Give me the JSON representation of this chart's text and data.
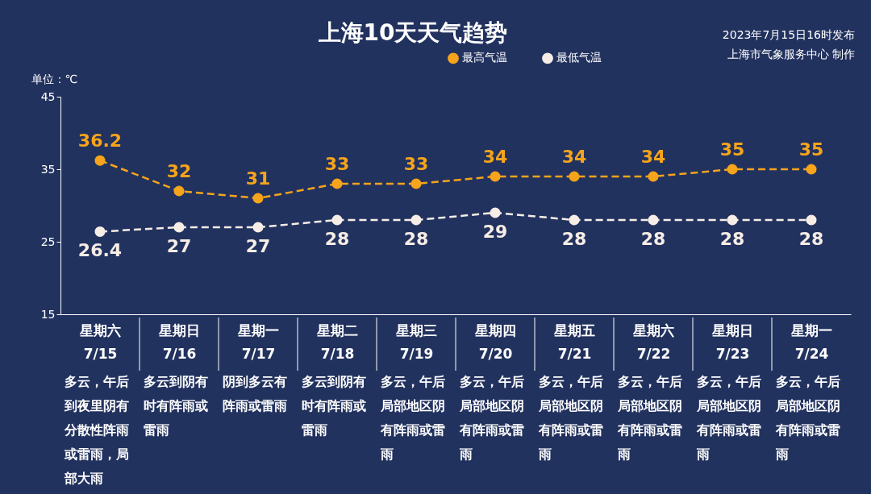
{
  "chart_data": {
    "type": "line",
    "title": "上海10天天气趋势",
    "ylabel": "单位：℃",
    "annotations": [
      "2023年7月15日16时发布",
      "上海市气象服务中心 制作",
      "多云，午后到夜里阴有分散性阵雨或雷雨，局部大雨",
      "多云到阴有时有阵雨或雷雨",
      "阴到多云有阵雨或雷雨",
      "多云到阴有时有阵雨或雷雨",
      "多云，午后局部地区阴有阵雨或雷雨",
      "多云，午后局部地区阴有阵雨或雷雨",
      "多云，午后局部地区阴有阵雨或雷雨",
      "多云，午后局部地区阴有阵雨或雷雨",
      "多云，午后局部地区阴有阵雨或雷雨",
      "多云，午后局部地区阴有阵雨或雷雨"
    ],
    "categories": [
      "星期六\n7/15",
      "星期日\n7/16",
      "星期一\n7/17",
      "星期二\n7/18",
      "星期三\n7/19",
      "星期四\n7/20",
      "星期五\n7/21",
      "星期六\n7/22",
      "星期日\n7/23",
      "星期一\n7/24"
    ],
    "series": [
      {
        "name": "最高气温",
        "color": "#f5a41c",
        "values": [
          36.2,
          32,
          31,
          33,
          33,
          34,
          34,
          34,
          35,
          35
        ]
      },
      {
        "name": "最低气温",
        "color": "#f6ede6",
        "values": [
          26.4,
          27,
          27,
          28,
          28,
          29,
          28,
          28,
          28,
          28
        ]
      }
    ],
    "ylim": [
      15,
      45
    ],
    "yticks": [
      15,
      25,
      35,
      45
    ],
    "data_labels": true,
    "legend": "top",
    "marker": "circle",
    "line_style": "dashed"
  }
}
